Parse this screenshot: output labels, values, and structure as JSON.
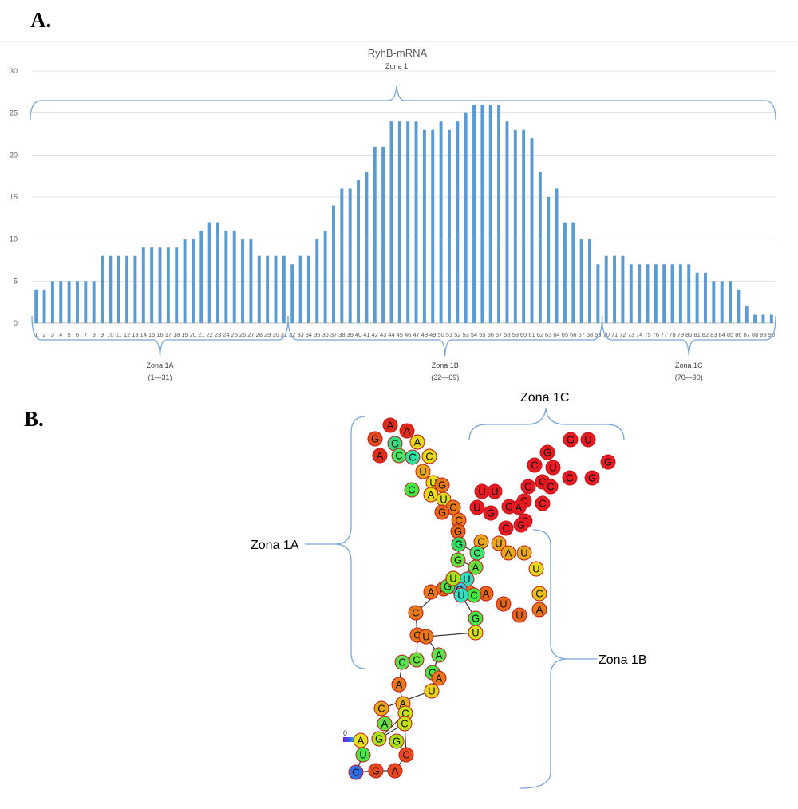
{
  "panel_a": {
    "label": "A.",
    "chart_data": {
      "type": "bar",
      "title": "RyhB-mRNA",
      "xlabel": "",
      "ylabel": "",
      "ylim": [
        0,
        30
      ],
      "yticks": [
        0,
        5,
        10,
        15,
        20,
        25,
        30
      ],
      "grid": true,
      "bar_color": "#5b9bd5",
      "categories": [
        1,
        2,
        3,
        4,
        5,
        6,
        7,
        8,
        9,
        10,
        11,
        12,
        13,
        14,
        15,
        16,
        17,
        18,
        19,
        20,
        21,
        22,
        23,
        24,
        25,
        26,
        27,
        28,
        29,
        30,
        31,
        32,
        33,
        34,
        35,
        36,
        37,
        38,
        39,
        40,
        41,
        42,
        43,
        44,
        45,
        46,
        47,
        48,
        49,
        50,
        51,
        52,
        53,
        54,
        55,
        56,
        57,
        58,
        59,
        60,
        61,
        62,
        63,
        64,
        65,
        66,
        67,
        68,
        69,
        70,
        71,
        72,
        73,
        74,
        75,
        76,
        77,
        78,
        79,
        80,
        81,
        82,
        83,
        84,
        85,
        86,
        87,
        88,
        89,
        90
      ],
      "values": [
        4,
        4,
        5,
        5,
        5,
        5,
        5,
        5,
        8,
        8,
        8,
        8,
        8,
        9,
        9,
        9,
        9,
        9,
        10,
        10,
        11,
        12,
        12,
        11,
        11,
        10,
        10,
        8,
        8,
        8,
        8,
        7,
        8,
        8,
        10,
        11,
        14,
        16,
        16,
        17,
        18,
        21,
        21,
        24,
        24,
        24,
        24,
        23,
        23,
        24,
        23,
        24,
        25,
        26,
        26,
        26,
        26,
        24,
        23,
        23,
        22,
        18,
        15,
        16,
        12,
        12,
        10,
        10,
        7,
        8,
        8,
        8,
        7,
        7,
        7,
        7,
        7,
        7,
        7,
        7,
        6,
        6,
        5,
        5,
        5,
        4,
        2,
        1,
        1,
        1
      ],
      "annotations": [
        {
          "name": "Zona 1",
          "range": "",
          "from": 1,
          "to": 90
        },
        {
          "name": "Zona 1A",
          "range": "(1—31)",
          "from": 1,
          "to": 31
        },
        {
          "name": "Zona 1B",
          "range": "(32—69)",
          "from": 32,
          "to": 69
        },
        {
          "name": "Zona 1C",
          "range": "(70—90)",
          "from": 70,
          "to": 90
        }
      ]
    }
  },
  "panel_b": {
    "label": "B.",
    "zones": {
      "z1a": "Zona 1A",
      "z1b": "Zona 1B",
      "z1c": "Zona 1C"
    },
    "scale_label": "0",
    "nucleotides": [
      {
        "b": "A",
        "c": "#e02a1a"
      },
      {
        "b": "A",
        "c": "#e02a1a"
      },
      {
        "b": "G",
        "c": "#e8481c"
      },
      {
        "b": "G",
        "c": "#2fe080"
      },
      {
        "b": "A",
        "c": "#e6d81a"
      },
      {
        "b": "A",
        "c": "#e02a1a"
      },
      {
        "b": "C",
        "c": "#44e860"
      },
      {
        "b": "C",
        "c": "#2fe0a0"
      },
      {
        "b": "C",
        "c": "#e6d81a"
      },
      {
        "b": "U",
        "c": "#e8a61a"
      },
      {
        "b": "U",
        "c": "#e6e01a"
      },
      {
        "b": "C",
        "c": "#44e844"
      },
      {
        "b": "A",
        "c": "#e6d81a"
      },
      {
        "b": "U",
        "c": "#d8e01a"
      },
      {
        "b": "G",
        "c": "#e87a1c"
      },
      {
        "b": "C",
        "c": "#e8781a"
      },
      {
        "b": "G",
        "c": "#e8661a"
      },
      {
        "b": "C",
        "c": "#e8781a"
      },
      {
        "b": "G",
        "c": "#e8661a"
      },
      {
        "b": "U",
        "c": "#e81a22"
      },
      {
        "b": "U",
        "c": "#e81a22"
      },
      {
        "b": "U",
        "c": "#e81a22"
      },
      {
        "b": "G",
        "c": "#e81a22"
      },
      {
        "b": "G",
        "c": "#e81a22"
      },
      {
        "b": "C",
        "c": "#e81a22"
      },
      {
        "b": "G",
        "c": "#e81a22"
      },
      {
        "b": "C",
        "c": "#e81a22"
      },
      {
        "b": "U",
        "c": "#e81a22"
      },
      {
        "b": "C",
        "c": "#e81a22"
      },
      {
        "b": "G",
        "c": "#e81a22"
      },
      {
        "b": "G",
        "c": "#e81a22"
      },
      {
        "b": "U",
        "c": "#e81a22"
      },
      {
        "b": "G",
        "c": "#e81a22"
      },
      {
        "b": "G",
        "c": "#e81a22"
      },
      {
        "b": "C",
        "c": "#e81a22"
      },
      {
        "b": "C",
        "c": "#e81a22"
      },
      {
        "b": "C",
        "c": "#e81a22"
      },
      {
        "b": "C",
        "c": "#e81a22"
      },
      {
        "b": "A",
        "c": "#e81a22"
      },
      {
        "b": "C",
        "c": "#e81a22"
      },
      {
        "b": "U",
        "c": "#e8a61a"
      },
      {
        "b": "C",
        "c": "#e8a61a"
      },
      {
        "b": "G",
        "c": "#e81a22"
      },
      {
        "b": "A",
        "c": "#e8a61a"
      },
      {
        "b": "U",
        "c": "#e8a61a"
      },
      {
        "b": "U",
        "c": "#e6d81a"
      },
      {
        "b": "C",
        "c": "#e8c21a"
      },
      {
        "b": "A",
        "c": "#e8781a"
      },
      {
        "b": "U",
        "c": "#e8661a"
      },
      {
        "b": "U",
        "c": "#e8661a"
      },
      {
        "b": "A",
        "c": "#e8661a"
      },
      {
        "b": "U",
        "c": "#e87a1c"
      },
      {
        "b": "G",
        "c": "#2fe060"
      },
      {
        "b": "C",
        "c": "#3ce874"
      },
      {
        "b": "G",
        "c": "#66e040"
      },
      {
        "b": "A",
        "c": "#66e040"
      },
      {
        "b": "U",
        "c": "#2fe0c0"
      },
      {
        "b": "G",
        "c": "#2fc8e8"
      },
      {
        "b": "C",
        "c": "#44e844"
      },
      {
        "b": "A",
        "c": "#2fe080"
      },
      {
        "b": "A",
        "c": "#e8781a"
      },
      {
        "b": "A",
        "c": "#e8661a"
      },
      {
        "b": "G",
        "c": "#44e844"
      },
      {
        "b": "U",
        "c": "#2fe0c0"
      },
      {
        "b": "U",
        "c": "#a8e01a"
      },
      {
        "b": "C",
        "c": "#e8781a"
      },
      {
        "b": "C",
        "c": "#e8781a"
      },
      {
        "b": "G",
        "c": "#44e844"
      },
      {
        "b": "U",
        "c": "#d8e01a"
      },
      {
        "b": "U",
        "c": "#e8781a"
      },
      {
        "b": "A",
        "c": "#5ae050"
      },
      {
        "b": "C",
        "c": "#66e040"
      },
      {
        "b": "G",
        "c": "#44e844"
      },
      {
        "b": "C",
        "c": "#5ae050"
      },
      {
        "b": "A",
        "c": "#e8781a"
      },
      {
        "b": "A",
        "c": "#e8781a"
      },
      {
        "b": "A",
        "c": "#e8b21a"
      },
      {
        "b": "U",
        "c": "#e8d21a"
      },
      {
        "b": "C",
        "c": "#e8a61a"
      },
      {
        "b": "A",
        "c": "#66e040"
      },
      {
        "b": "C",
        "c": "#c6e01a"
      },
      {
        "b": "G",
        "c": "#a8e01a"
      },
      {
        "b": "C",
        "c": "#c6e01a"
      },
      {
        "b": "G",
        "c": "#a8e01a"
      },
      {
        "b": "A",
        "c": "#e6e01a"
      },
      {
        "b": "U",
        "c": "#44e844"
      },
      {
        "b": "C",
        "c": "#2f6ee8"
      },
      {
        "b": "G",
        "c": "#e8481c"
      },
      {
        "b": "A",
        "c": "#e8481c"
      },
      {
        "b": "C",
        "c": "#e8481c"
      },
      {
        "b": "A",
        "c": "#e8481c"
      },
      {
        "b": "U",
        "c": "#e81a22"
      }
    ]
  }
}
